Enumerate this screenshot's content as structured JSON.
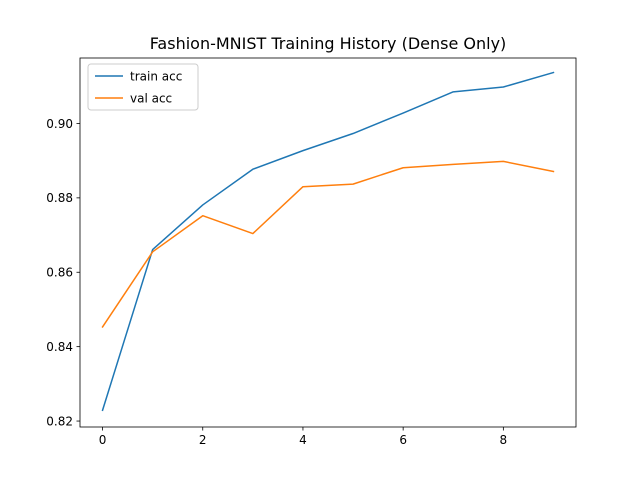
{
  "chart_data": {
    "type": "line",
    "title": "Fashion-MNIST Training History (Dense Only)",
    "xlabel": "",
    "ylabel": "",
    "x": [
      0,
      1,
      2,
      3,
      4,
      5,
      6,
      7,
      8,
      9
    ],
    "xlim": [
      -0.45,
      9.45
    ],
    "ylim": [
      0.8184,
      0.9176
    ],
    "xticks": [
      0,
      2,
      4,
      6,
      8
    ],
    "xtick_labels": [
      "0",
      "2",
      "4",
      "6",
      "8"
    ],
    "yticks": [
      0.82,
      0.84,
      0.86,
      0.88,
      0.9
    ],
    "ytick_labels": [
      "0.82",
      "0.84",
      "0.86",
      "0.88",
      "0.90"
    ],
    "grid": false,
    "legend_position": "upper-left",
    "series": [
      {
        "name": "train acc",
        "color": "#1f77b4",
        "values": [
          0.8229,
          0.8661,
          0.8781,
          0.8877,
          0.8927,
          0.8973,
          0.9028,
          0.9085,
          0.9098,
          0.9137
        ]
      },
      {
        "name": "val acc",
        "color": "#ff7f0e",
        "values": [
          0.8453,
          0.8655,
          0.8752,
          0.8704,
          0.883,
          0.8837,
          0.8881,
          0.889,
          0.8898,
          0.8871
        ]
      }
    ]
  }
}
